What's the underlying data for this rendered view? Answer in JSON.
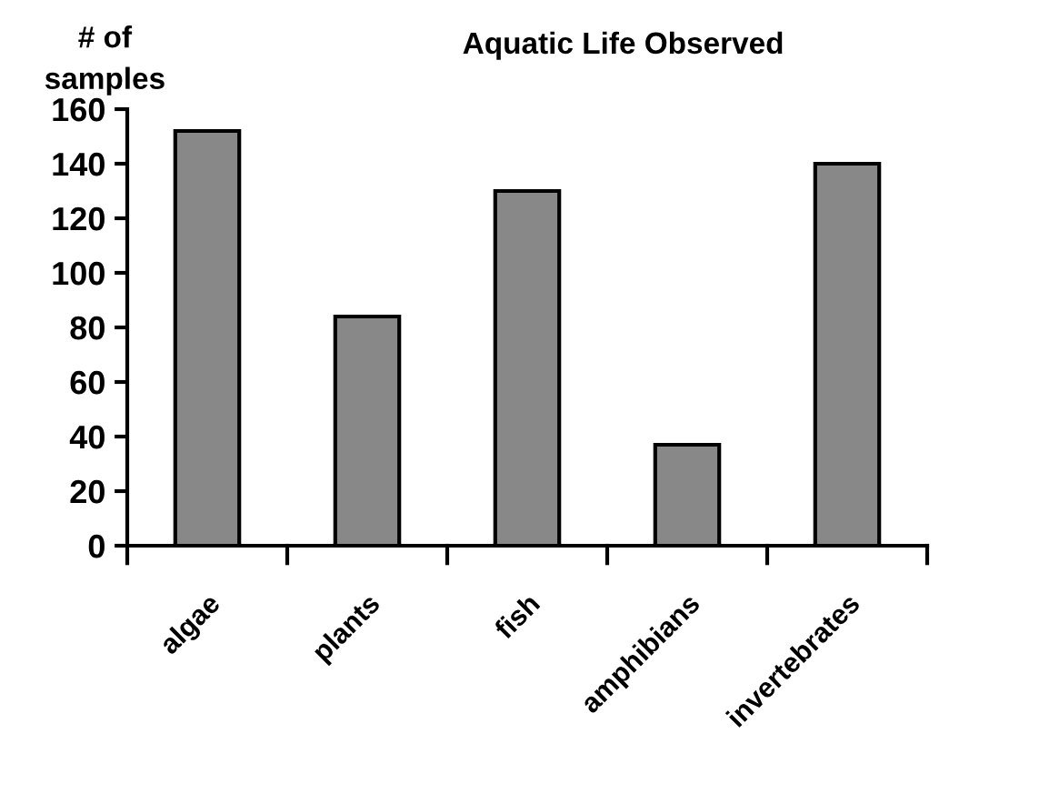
{
  "chart_data": {
    "type": "bar",
    "title": "Aquatic Life Observed",
    "ylabel": "# of\nsamples",
    "categories": [
      "algae",
      "plants",
      "fish",
      "amphibians",
      "invertebrates"
    ],
    "values": [
      152,
      84,
      130,
      37,
      140
    ],
    "color": "#888888",
    "ylim": [
      0,
      160
    ],
    "yticks": [
      0,
      20,
      40,
      60,
      80,
      100,
      120,
      140,
      160
    ],
    "grid": false,
    "legend": false
  }
}
